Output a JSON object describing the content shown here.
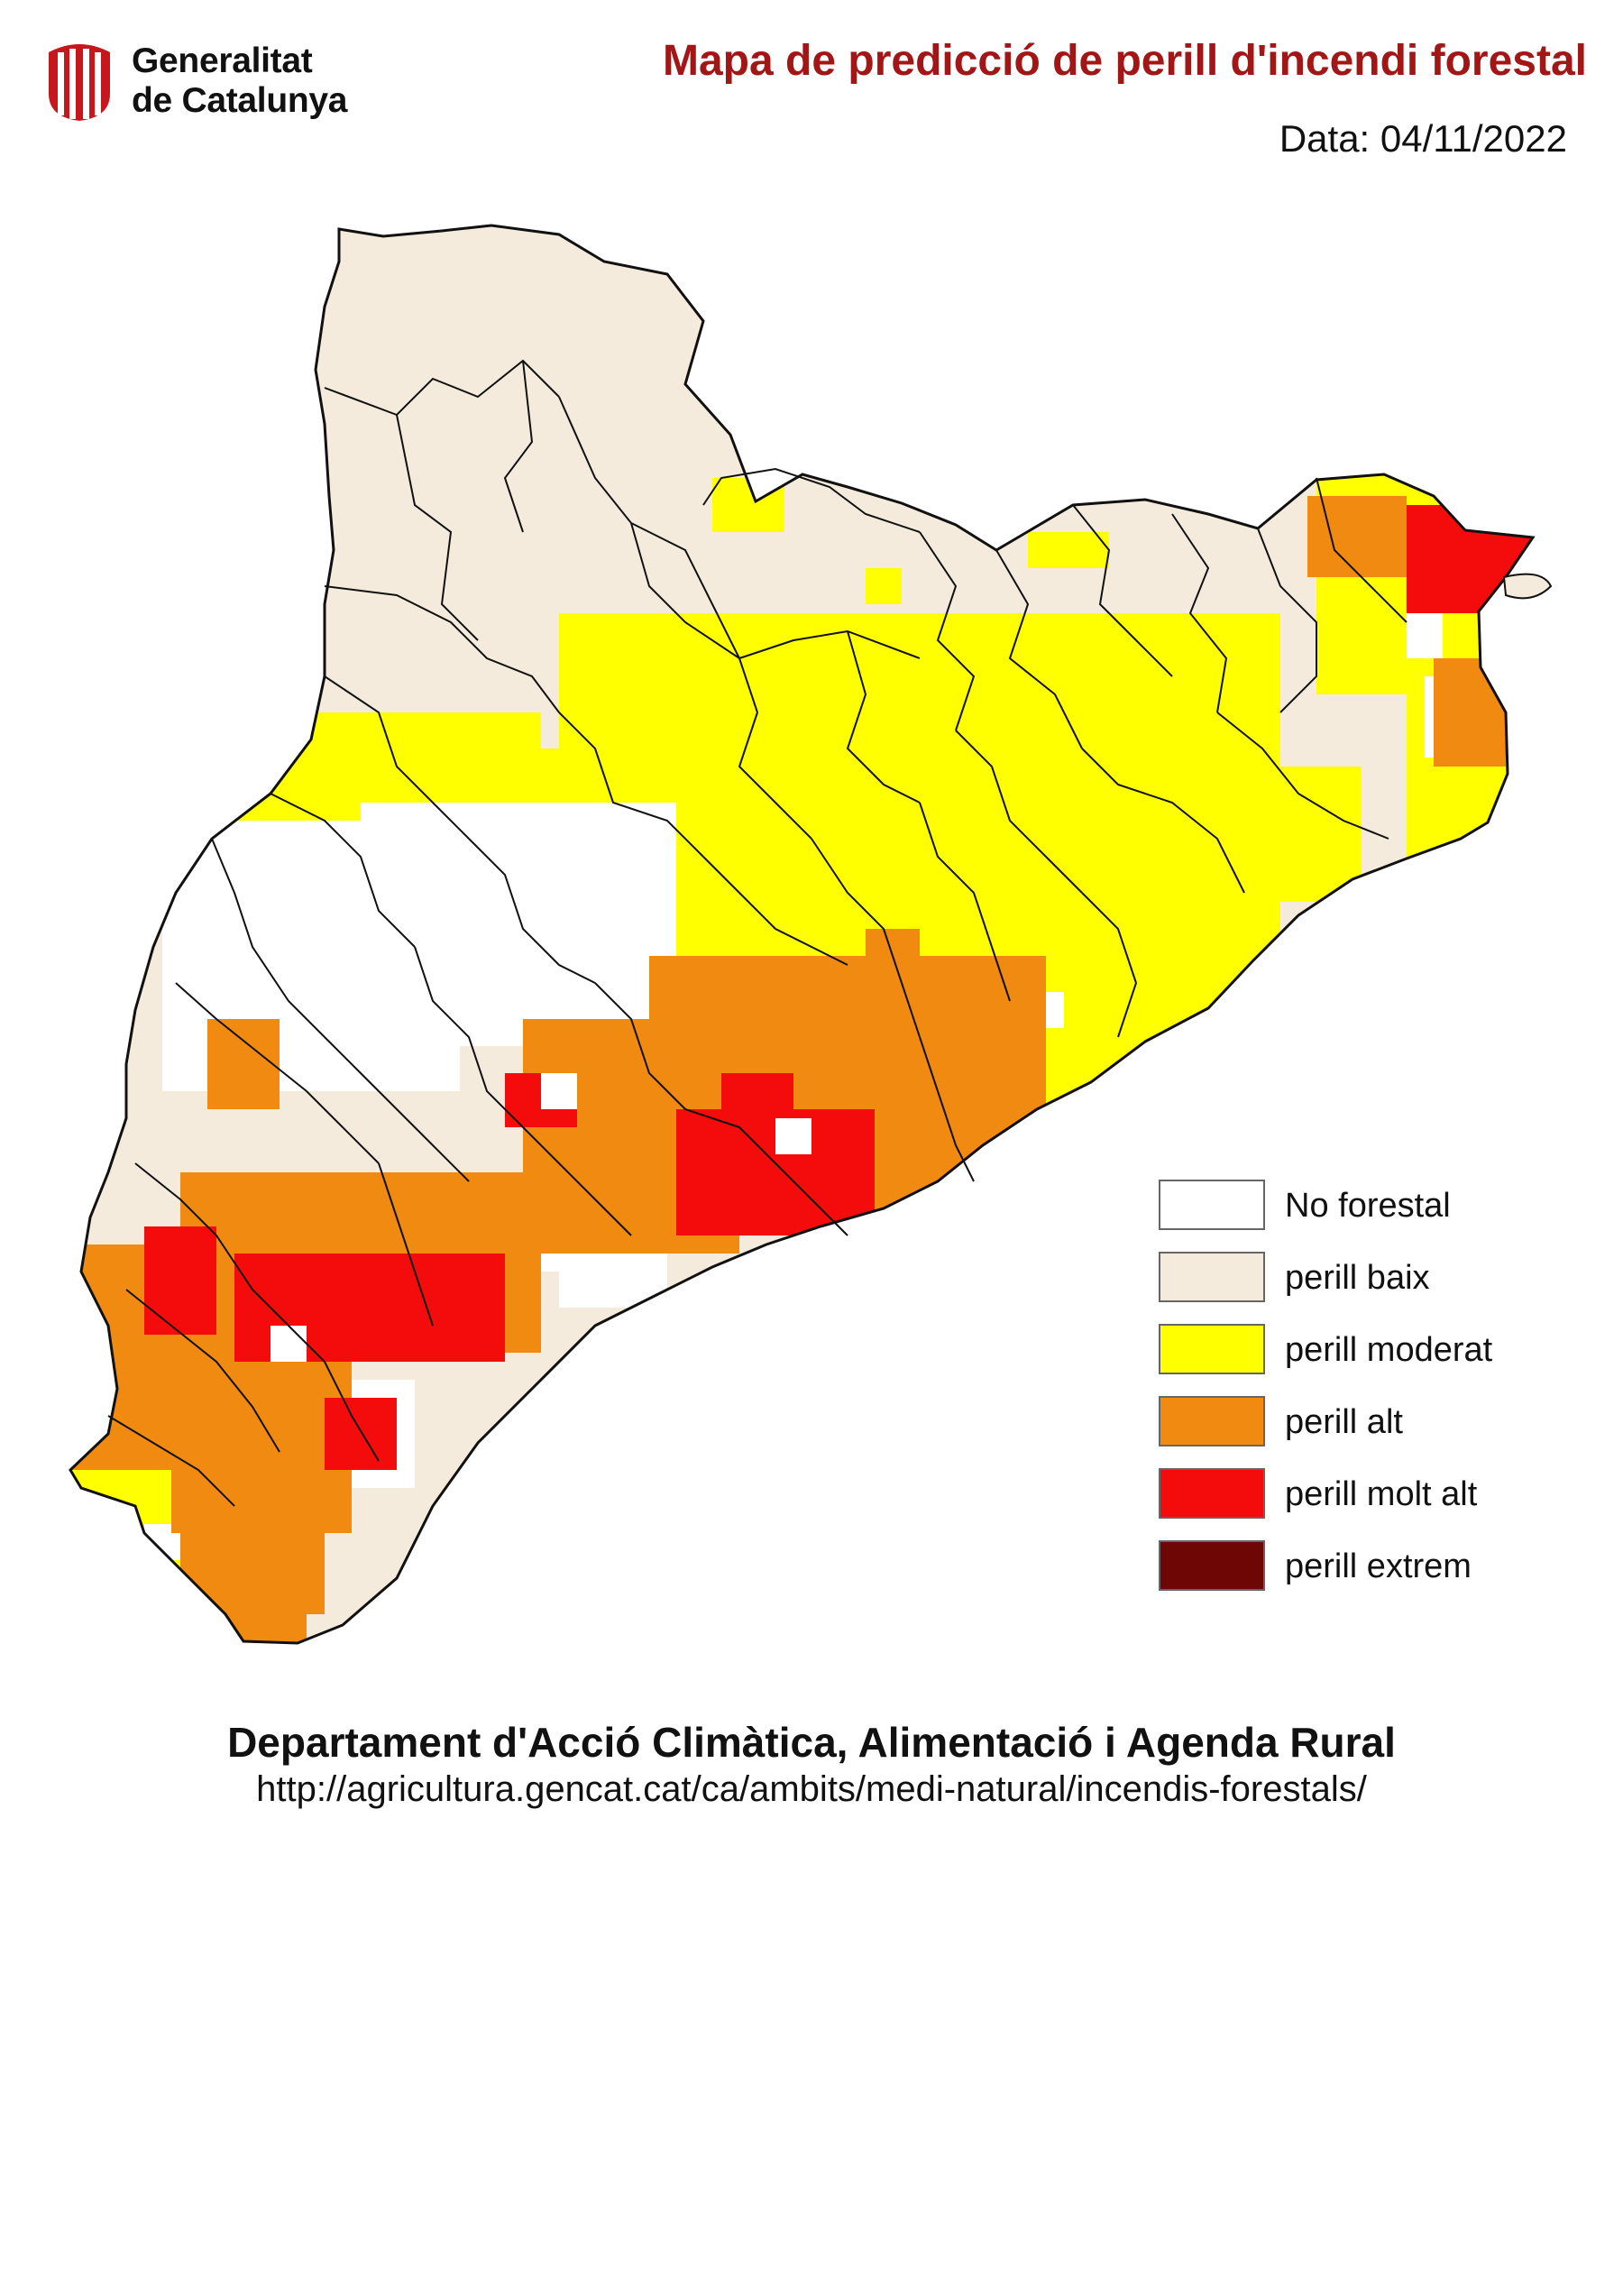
{
  "header": {
    "logo_line1": "Generalitat",
    "logo_line2": "de Catalunya",
    "title": "Mapa de predicció de perill d'incendi forestal",
    "date": "Data: 04/11/2022"
  },
  "legend": [
    {
      "label": "No forestal",
      "color": "#ffffff"
    },
    {
      "label": "perill baix",
      "color": "#f4ebdc"
    },
    {
      "label": "perill moderat",
      "color": "#ffff00"
    },
    {
      "label": "perill alt",
      "color": "#f08a10"
    },
    {
      "label": "perill molt alt",
      "color": "#f40c0c"
    },
    {
      "label": "perill extrem",
      "color": "#6e0606"
    }
  ],
  "footer": {
    "department": "Departament d'Acció Climàtica, Alimentació i Agenda Rural",
    "url": "http://agricultura.gencat.cat/ca/ambits/medi-natural/incendis-forestals/"
  },
  "colors": {
    "title": "#a31616",
    "border": "#111111",
    "logo": "#c8161d"
  }
}
